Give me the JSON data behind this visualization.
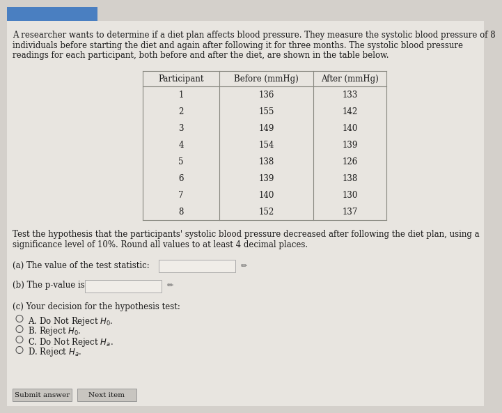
{
  "intro_line1": "A researcher wants to determine if a diet plan affects blood pressure. They measure the systolic blood pressure of 8",
  "intro_line2": "individuals before starting the diet and again after following it for three months. The systolic blood pressure",
  "intro_line3": "readings for each participant, both before and after the diet, are shown in the table below.",
  "participants": [
    1,
    2,
    3,
    4,
    5,
    6,
    7,
    8
  ],
  "before": [
    136,
    155,
    149,
    154,
    138,
    139,
    140,
    152
  ],
  "after": [
    133,
    142,
    140,
    139,
    126,
    138,
    130,
    137
  ],
  "col_headers": [
    "Participant",
    "Before (mmHg)",
    "After (mmHg)"
  ],
  "hypothesis_line1": "Test the hypothesis that the participants' systolic blood pressure decreased after following the diet plan, using a",
  "hypothesis_line2": "significance level of 10%. Round all values to at least 4 decimal places.",
  "part_a_label": "(a) The value of the test statistic:",
  "part_b_label": "(b) The p-value is",
  "part_c_label": "(c) Your decision for the hypothesis test:",
  "options": [
    [
      "A. Do Not Reject ",
      "H",
      "0",
      "."
    ],
    [
      "B. Reject ",
      "H",
      "0",
      "."
    ],
    [
      "C. Do Not Reject ",
      "H",
      "a",
      "."
    ],
    [
      "D. Reject ",
      "H",
      "a",
      "."
    ]
  ],
  "button_labels": [
    "Submit answer",
    "Next item"
  ],
  "bg_color": "#d4d0cb",
  "panel_bg": "#e8e5e0",
  "text_color": "#1a1a1a",
  "input_box_color": "#f0ede8",
  "font_size_body": 8.5,
  "font_size_table": 8.5,
  "blue_bar_color": "#4a7fc1"
}
